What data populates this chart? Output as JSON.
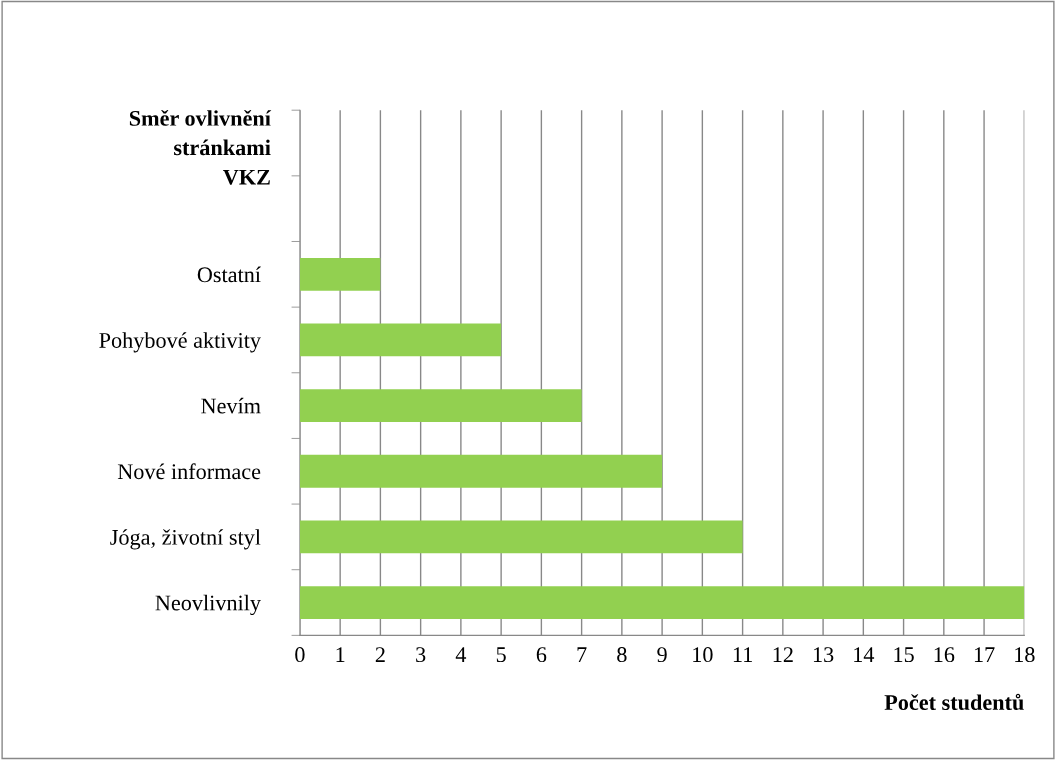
{
  "chart_data": {
    "type": "bar",
    "orientation": "horizontal",
    "ylabel": "Směr ovlivnění\nstránkami\nVKZ",
    "xlabel": "Počet studentů",
    "categories": [
      null,
      null,
      "Ostatní",
      "Pohybové aktivity",
      "Nevím",
      "Nové informace",
      "Jóga, životní styl",
      "Neovlivnily"
    ],
    "values": [
      null,
      null,
      2,
      5,
      7,
      9,
      11,
      18
    ],
    "color": "#92d050",
    "xlim": [
      0,
      18
    ],
    "xticks": [
      0,
      1,
      2,
      3,
      4,
      5,
      6,
      7,
      8,
      9,
      10,
      11,
      12,
      13,
      14,
      15,
      16,
      17,
      18
    ],
    "grid": "x",
    "legend": false
  }
}
